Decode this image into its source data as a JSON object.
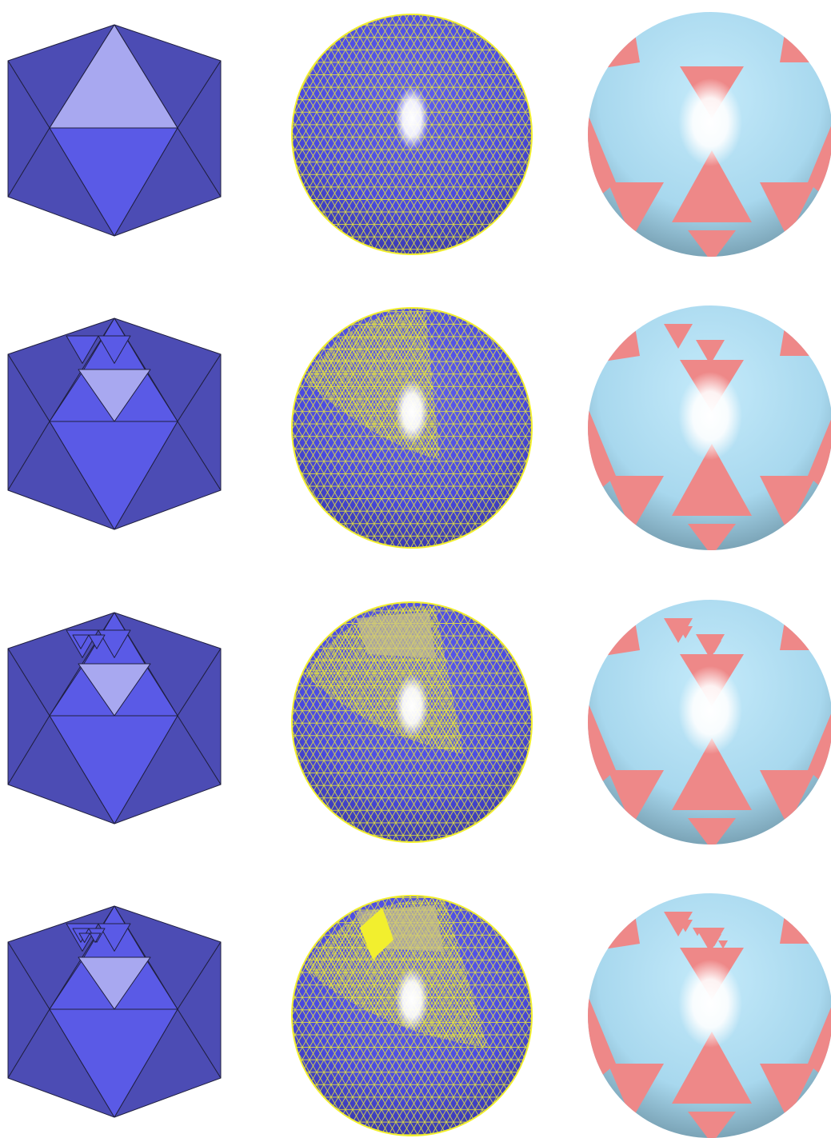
{
  "figure": {
    "layout": "grid",
    "rows": 4,
    "columns": [
      "icosahedron-refinement",
      "wireframe-sphere",
      "shaded-sphere"
    ],
    "refinement_levels": [
      0,
      1,
      2,
      3
    ],
    "colors": {
      "background": "#ffffff",
      "icosa_front": "#5a5ae6",
      "icosa_side": "#4c4cb4",
      "icosa_highlight": "#a8a8f0",
      "icosa_edge": "#202040",
      "sphere_blue": "#4a4ae0",
      "mesh_yellow": "#f2ef2e",
      "patch_tan": "#c8c088",
      "shaded_base": "#a8d8ee",
      "shaded_red": "#ee8888",
      "specular": "#ffffff"
    }
  }
}
